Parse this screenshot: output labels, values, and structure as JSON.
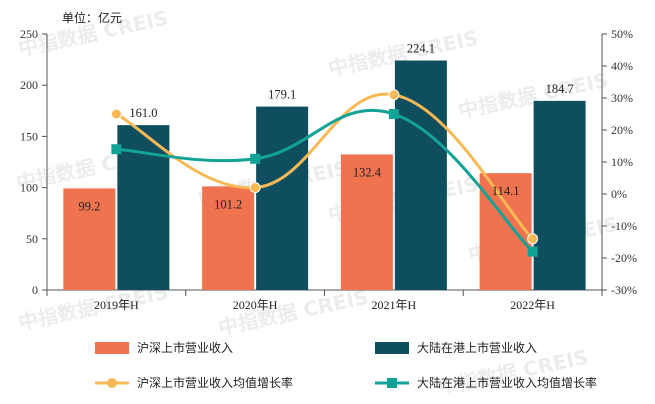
{
  "chart_data": {
    "type": "bar",
    "unit_label": "单位：亿元",
    "categories": [
      "2019年H",
      "2020年H",
      "2021年H",
      "2022年H"
    ],
    "y_left": {
      "min": 0,
      "max": 250,
      "ticks": [
        0,
        50,
        100,
        150,
        200,
        250
      ]
    },
    "y_right": {
      "min": -30,
      "max": 50,
      "ticks": [
        "-30%",
        "-20%",
        "-10%",
        "0%",
        "10%",
        "20%",
        "30%",
        "40%",
        "50%"
      ]
    },
    "bar_series": [
      {
        "name": "沪深上市营业收入",
        "color": "#F07350",
        "values": [
          99.2,
          101.2,
          132.4,
          114.1
        ],
        "labels": [
          "99.2",
          "101.2",
          "132.4",
          "114.1"
        ]
      },
      {
        "name": "大陆在港上市营业收入",
        "color": "#0F4E5E",
        "values": [
          161.0,
          179.1,
          224.1,
          184.7
        ],
        "labels": [
          "161.0",
          "179.1",
          "224.1",
          "184.7"
        ]
      }
    ],
    "line_series": [
      {
        "name": "沪深上市营业收入均值增长率",
        "color": "#F8B955",
        "marker": "circle",
        "values": [
          25,
          2,
          31,
          -14
        ]
      },
      {
        "name": "大陆在港上市营业收入均值增长率",
        "color": "#12A396",
        "marker": "square",
        "values": [
          14,
          11,
          25,
          -18
        ]
      }
    ],
    "grid": false,
    "legend_position": "bottom",
    "watermark": "中指数据 CREIS"
  }
}
